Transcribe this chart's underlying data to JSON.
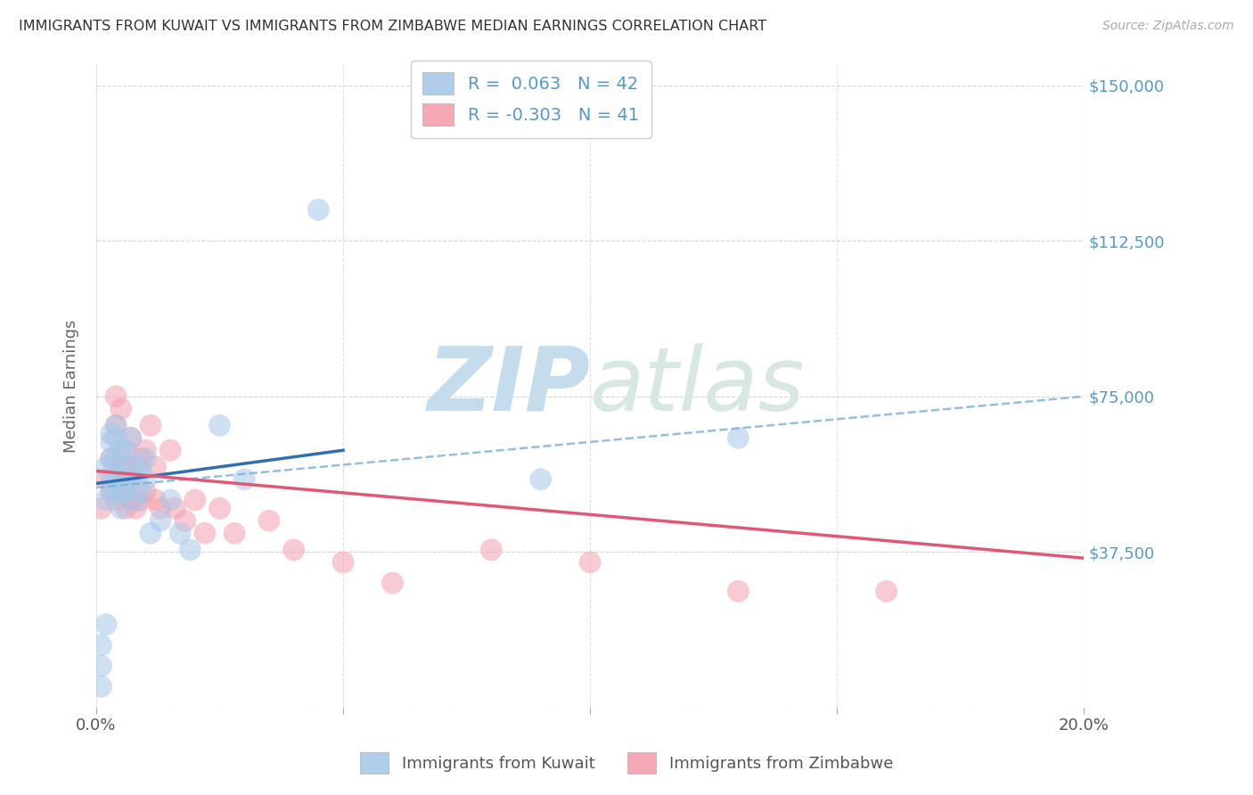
{
  "title": "IMMIGRANTS FROM KUWAIT VS IMMIGRANTS FROM ZIMBABWE MEDIAN EARNINGS CORRELATION CHART",
  "source": "Source: ZipAtlas.com",
  "ylabel": "Median Earnings",
  "y_ticks": [
    0,
    37500,
    75000,
    112500,
    150000
  ],
  "y_tick_labels": [
    "",
    "$37,500",
    "$75,000",
    "$112,500",
    "$150,000"
  ],
  "xlim": [
    0.0,
    0.2
  ],
  "ylim": [
    0,
    155000
  ],
  "kuwait_R": 0.063,
  "kuwait_N": 42,
  "zimbabwe_R": -0.303,
  "zimbabwe_N": 41,
  "kuwait_color": "#a8c8e8",
  "zimbabwe_color": "#f4a0b0",
  "kuwait_line_color": "#3070b0",
  "zimbabwe_line_color": "#e05878",
  "dashed_line_color": "#7ab0d8",
  "watermark_zip": "ZIP",
  "watermark_atlas": "atlas",
  "watermark_color": "#d0e4f0",
  "background_color": "#ffffff",
  "grid_color": "#cccccc",
  "title_color": "#333333",
  "axis_label_color": "#5599cc",
  "kuwait_x": [
    0.001,
    0.001,
    0.001,
    0.002,
    0.002,
    0.002,
    0.003,
    0.003,
    0.003,
    0.003,
    0.003,
    0.004,
    0.004,
    0.004,
    0.004,
    0.004,
    0.005,
    0.005,
    0.005,
    0.005,
    0.005,
    0.006,
    0.006,
    0.006,
    0.007,
    0.007,
    0.008,
    0.008,
    0.009,
    0.009,
    0.01,
    0.01,
    0.011,
    0.013,
    0.015,
    0.017,
    0.019,
    0.025,
    0.03,
    0.045,
    0.09,
    0.13
  ],
  "kuwait_y": [
    5000,
    10000,
    15000,
    20000,
    50000,
    58000,
    52000,
    55000,
    60000,
    64000,
    66000,
    52000,
    55000,
    60000,
    65000,
    68000,
    48000,
    52000,
    55000,
    58000,
    62000,
    52000,
    55000,
    62000,
    58000,
    65000,
    50000,
    55000,
    52000,
    58000,
    55000,
    60000,
    42000,
    45000,
    50000,
    42000,
    38000,
    68000,
    55000,
    120000,
    55000,
    65000
  ],
  "zimbabwe_x": [
    0.001,
    0.002,
    0.003,
    0.003,
    0.004,
    0.004,
    0.004,
    0.005,
    0.005,
    0.005,
    0.006,
    0.006,
    0.006,
    0.007,
    0.007,
    0.007,
    0.008,
    0.008,
    0.009,
    0.009,
    0.01,
    0.01,
    0.011,
    0.012,
    0.012,
    0.013,
    0.015,
    0.016,
    0.018,
    0.02,
    0.022,
    0.025,
    0.028,
    0.035,
    0.04,
    0.05,
    0.06,
    0.08,
    0.1,
    0.13,
    0.16
  ],
  "zimbabwe_y": [
    48000,
    55000,
    52000,
    60000,
    50000,
    68000,
    75000,
    52000,
    58000,
    72000,
    48000,
    55000,
    62000,
    50000,
    55000,
    65000,
    48000,
    58000,
    50000,
    60000,
    52000,
    62000,
    68000,
    50000,
    58000,
    48000,
    62000,
    48000,
    45000,
    50000,
    42000,
    48000,
    42000,
    45000,
    38000,
    35000,
    30000,
    38000,
    35000,
    28000,
    28000
  ],
  "kuwait_line_x": [
    0.0,
    0.05
  ],
  "kuwait_line_y": [
    54000,
    62000
  ],
  "zimbabwe_line_x": [
    0.0,
    0.2
  ],
  "zimbabwe_line_y": [
    57000,
    36000
  ],
  "dashed_line_x": [
    0.0,
    0.2
  ],
  "dashed_line_y": [
    53000,
    75000
  ]
}
